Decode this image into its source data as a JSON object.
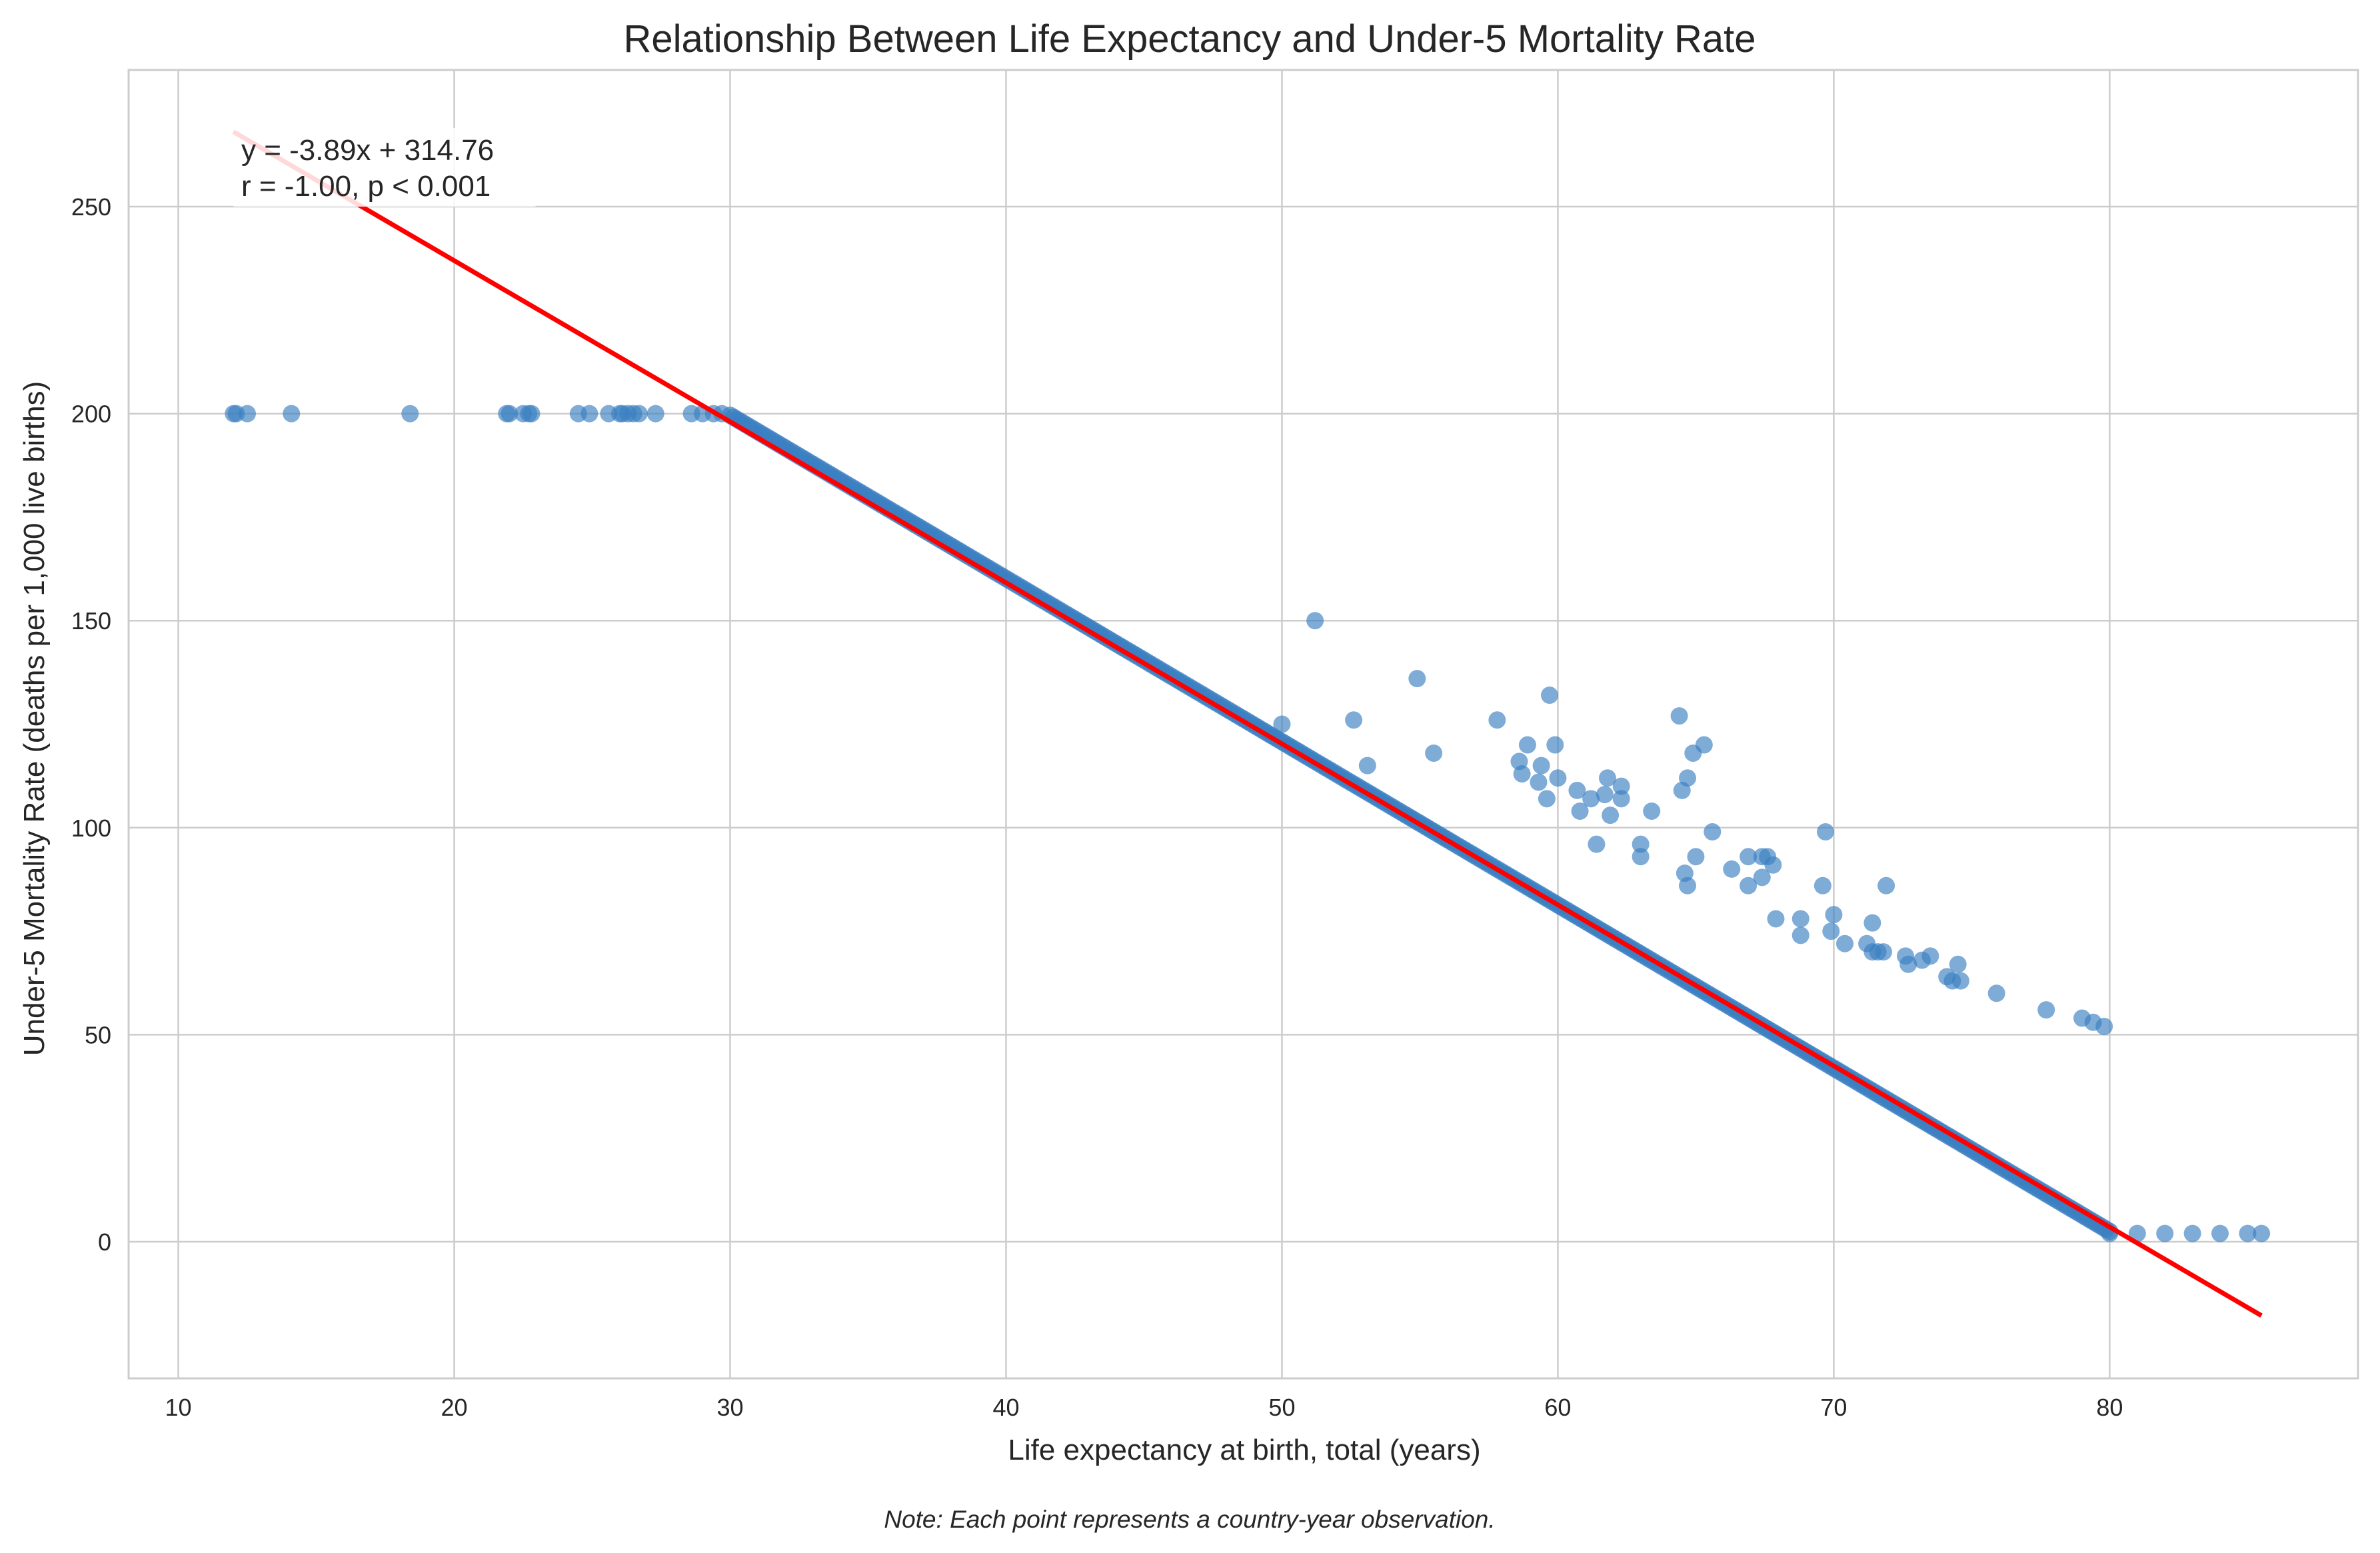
{
  "chart_data": {
    "type": "scatter",
    "title": "Relationship Between Life Expectancy and Under-5 Mortality Rate",
    "xlabel": "Life expectancy at birth, total (years)",
    "ylabel": "Under-5 Mortality Rate (deaths per 1,000 live births)",
    "note": "Note: Each point represents a country-year observation.",
    "xlim": [
      8.2,
      89
    ],
    "ylim": [
      -33,
      283
    ],
    "xticks": [
      10,
      20,
      30,
      40,
      50,
      60,
      70,
      80
    ],
    "yticks": [
      0,
      50,
      100,
      150,
      200,
      250
    ],
    "grid": true,
    "annotation": {
      "line1": "y = -3.89x + 314.76",
      "line2": "r = -1.00, p < 0.001",
      "placement": "top-left"
    },
    "colors": {
      "points": "#3a7fc2",
      "regression": "#ff0000",
      "grid": "#cccccc",
      "frame": "#cccccc"
    },
    "regression": {
      "slope": -3.89,
      "intercept": 314.76,
      "x_range": [
        12,
        85.5
      ]
    },
    "series": [
      {
        "points": [
          [
            12.0,
            200
          ],
          [
            12.1,
            200
          ],
          [
            12.5,
            200
          ],
          [
            14.1,
            200
          ],
          [
            18.4,
            200
          ],
          [
            21.9,
            200
          ],
          [
            22.0,
            200
          ],
          [
            22.5,
            200
          ],
          [
            22.7,
            200
          ],
          [
            22.8,
            200
          ],
          [
            24.5,
            200
          ],
          [
            24.9,
            200
          ],
          [
            25.6,
            200
          ],
          [
            26.0,
            200
          ],
          [
            26.1,
            200
          ],
          [
            26.3,
            200
          ],
          [
            26.5,
            200
          ],
          [
            26.7,
            200
          ],
          [
            27.3,
            200
          ],
          [
            28.6,
            200
          ],
          [
            29.0,
            200
          ],
          [
            29.4,
            200
          ],
          [
            29.7,
            200
          ],
          [
            51.2,
            150
          ],
          [
            54.9,
            136
          ],
          [
            52.6,
            126
          ],
          [
            57.8,
            126
          ],
          [
            59.7,
            132
          ],
          [
            55.5,
            118
          ],
          [
            53.1,
            115
          ],
          [
            50.0,
            125
          ],
          [
            58.6,
            116
          ],
          [
            58.7,
            113
          ],
          [
            58.9,
            120
          ],
          [
            59.3,
            111
          ],
          [
            59.4,
            115
          ],
          [
            59.6,
            107
          ],
          [
            59.9,
            120
          ],
          [
            60.0,
            112
          ],
          [
            60.7,
            109
          ],
          [
            60.8,
            104
          ],
          [
            61.2,
            107
          ],
          [
            61.4,
            96
          ],
          [
            61.7,
            108
          ],
          [
            61.8,
            112
          ],
          [
            61.9,
            103
          ],
          [
            62.3,
            110
          ],
          [
            62.3,
            107
          ],
          [
            63.0,
            96
          ],
          [
            63.0,
            93
          ],
          [
            63.4,
            104
          ],
          [
            64.4,
            127
          ],
          [
            64.5,
            109
          ],
          [
            64.7,
            112
          ],
          [
            64.9,
            118
          ],
          [
            65.3,
            120
          ],
          [
            64.6,
            89
          ],
          [
            64.7,
            86
          ],
          [
            65.0,
            93
          ],
          [
            65.6,
            99
          ],
          [
            66.3,
            90
          ],
          [
            66.9,
            93
          ],
          [
            66.9,
            86
          ],
          [
            67.4,
            93
          ],
          [
            67.4,
            88
          ],
          [
            67.6,
            93
          ],
          [
            67.8,
            91
          ],
          [
            67.9,
            78
          ],
          [
            68.8,
            78
          ],
          [
            68.8,
            74
          ],
          [
            69.6,
            86
          ],
          [
            69.7,
            99
          ],
          [
            70.0,
            79
          ],
          [
            69.9,
            75
          ],
          [
            70.4,
            72
          ],
          [
            71.2,
            72
          ],
          [
            71.4,
            77
          ],
          [
            71.4,
            70
          ],
          [
            71.6,
            70
          ],
          [
            71.8,
            70
          ],
          [
            71.9,
            86
          ],
          [
            72.6,
            69
          ],
          [
            72.7,
            67
          ],
          [
            73.2,
            68
          ],
          [
            73.5,
            69
          ],
          [
            74.1,
            64
          ],
          [
            74.3,
            63
          ],
          [
            74.5,
            67
          ],
          [
            74.6,
            63
          ],
          [
            75.9,
            60
          ],
          [
            77.7,
            56
          ],
          [
            79.0,
            54
          ],
          [
            79.4,
            53
          ],
          [
            79.8,
            52
          ],
          [
            80.0,
            2
          ],
          [
            81.0,
            2
          ],
          [
            82.0,
            2
          ],
          [
            83.0,
            2
          ],
          [
            84.0,
            2
          ],
          [
            85.0,
            2
          ],
          [
            85.5,
            2
          ]
        ]
      }
    ],
    "dense_segment": {
      "x_start": 30.0,
      "x_end": 80.0,
      "y_start": 199.6,
      "y_end": 2.5
    }
  }
}
